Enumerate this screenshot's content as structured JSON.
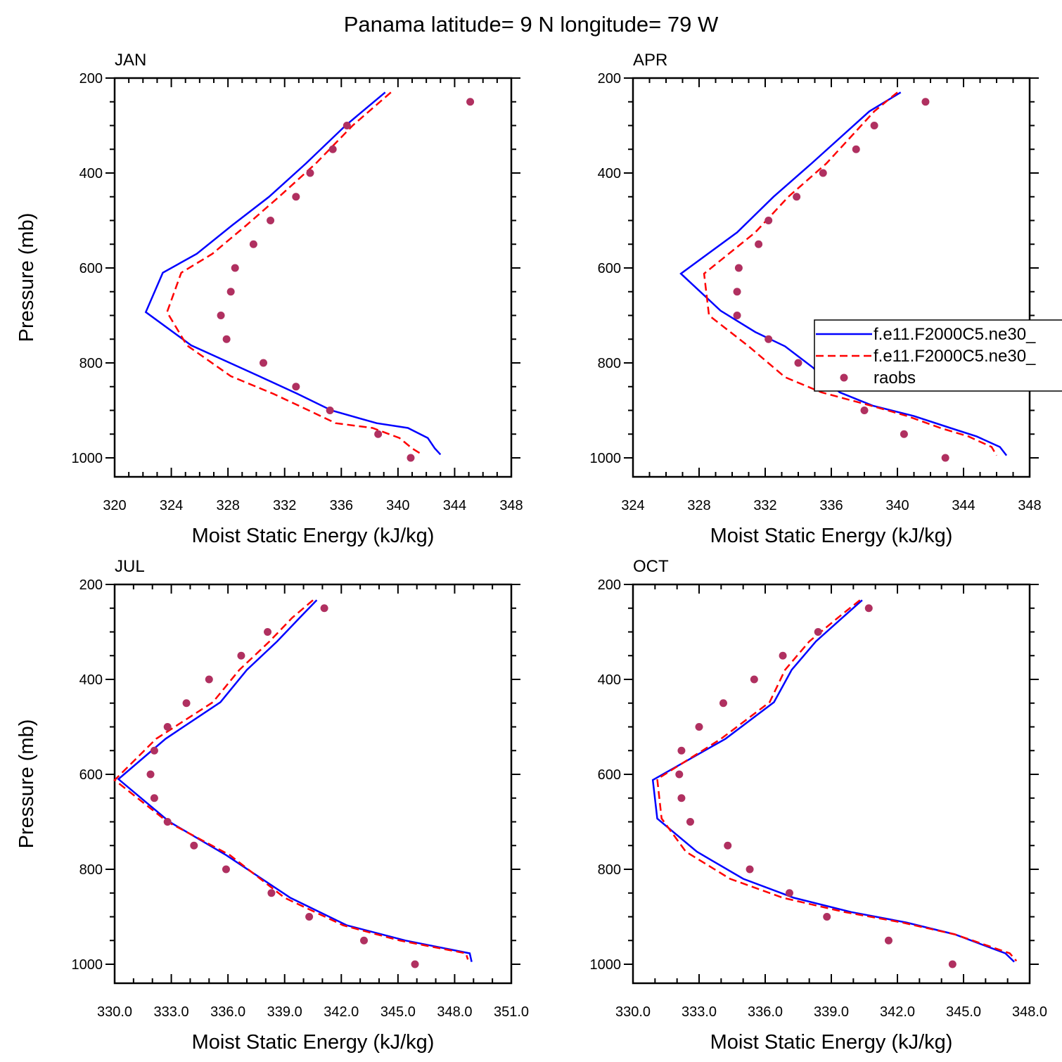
{
  "title": "Panama  latitude= 9 N longitude= 79 W",
  "legend": {
    "position": "right of APR panel (clipped at figure edge)",
    "entries": [
      {
        "label": "f.e11.F2000C5.ne30_",
        "style": "solid",
        "color": "#0000ff"
      },
      {
        "label": "f.e11.F2000C5.ne30_",
        "style": "dashed",
        "color": "#ff0000"
      },
      {
        "label": "raobs",
        "style": "marker",
        "color": "#b03060"
      }
    ]
  },
  "colors": {
    "model_solid": "#0000ff",
    "model_dashed": "#ff0000",
    "raobs": "#b03060"
  },
  "chart_data": [
    {
      "type": "line",
      "panel_label": "JAN",
      "xlabel": "Moist Static Energy (kJ/kg)",
      "ylabel": "Pressure (mb)",
      "xlim": [
        320,
        348
      ],
      "xticks": [
        320,
        324,
        328,
        332,
        336,
        340,
        344,
        348
      ],
      "xtick_labels": [
        "320",
        "324",
        "328",
        "332",
        "336",
        "340",
        "344",
        "348"
      ],
      "x_minor": 1,
      "ylim": [
        200,
        1040
      ],
      "y_inverted": true,
      "yticks": [
        200,
        400,
        600,
        800,
        1000
      ],
      "ytick_labels": [
        "200",
        "400",
        "600",
        "800",
        "1000"
      ],
      "series": [
        {
          "style": "solid",
          "color": "#0000ff",
          "x": [
            339.1,
            336.3,
            333.5,
            330.9,
            328.3,
            325.8,
            323.4,
            322.2,
            325.4,
            330.2,
            332.9,
            335.3,
            338.5,
            340.7,
            342.1,
            342.6,
            343.0
          ],
          "y": [
            230,
            300,
            380,
            450,
            510,
            570,
            610,
            693,
            763,
            828,
            865,
            900,
            927,
            937,
            958,
            980,
            993
          ]
        },
        {
          "style": "dashed",
          "color": "#ff0000",
          "x": [
            339.5,
            336.8,
            334.2,
            331.6,
            329.3,
            326.9,
            324.7,
            323.7,
            325.1,
            328.2,
            331.2,
            333.7,
            335.6,
            338.2,
            340.1,
            341.0,
            341.7
          ],
          "y": [
            230,
            300,
            380,
            450,
            510,
            570,
            610,
            693,
            763,
            828,
            865,
            900,
            927,
            937,
            958,
            980,
            993
          ]
        },
        {
          "style": "marker",
          "color": "#b03060",
          "x": [
            345.1,
            336.4,
            335.4,
            333.8,
            332.8,
            331.0,
            329.8,
            328.5,
            328.2,
            327.5,
            327.9,
            330.5,
            332.8,
            335.2,
            338.6,
            340.9
          ],
          "y": [
            250,
            300,
            350,
            400,
            450,
            500,
            550,
            600,
            650,
            700,
            750,
            800,
            850,
            900,
            950,
            1000
          ]
        }
      ]
    },
    {
      "type": "line",
      "panel_label": "APR",
      "xlabel": "Moist Static Energy (kJ/kg)",
      "ylabel": "",
      "xlim": [
        324,
        348
      ],
      "xticks": [
        324,
        328,
        332,
        336,
        340,
        344,
        348
      ],
      "xtick_labels": [
        "324",
        "328",
        "332",
        "336",
        "340",
        "344",
        "348"
      ],
      "x_minor": 1,
      "ylim": [
        200,
        1040
      ],
      "y_inverted": true,
      "yticks": [
        200,
        400,
        600,
        800,
        1000
      ],
      "ytick_labels": [
        "200",
        "400",
        "600",
        "800",
        "1000"
      ],
      "series": [
        {
          "style": "solid",
          "color": "#0000ff",
          "x": [
            340.2,
            338.3,
            334.8,
            332.5,
            330.3,
            326.9,
            329.3,
            331.4,
            333.2,
            334.9,
            336.5,
            338.5,
            341.0,
            343.2,
            344.8,
            346.2,
            346.6
          ],
          "y": [
            230,
            270,
            380,
            450,
            525,
            612,
            690,
            735,
            765,
            810,
            862,
            890,
            912,
            937,
            955,
            977,
            995
          ]
        },
        {
          "style": "dashed",
          "color": "#ff0000",
          "x": [
            340.0,
            338.6,
            335.7,
            333.4,
            331.4,
            328.3,
            328.6,
            331.0,
            333.2,
            335.4,
            338.4,
            340.6,
            342.6,
            344.3,
            345.7,
            346.0
          ],
          "y": [
            230,
            270,
            380,
            450,
            525,
            612,
            700,
            765,
            830,
            862,
            890,
            912,
            937,
            955,
            977,
            995
          ]
        },
        {
          "style": "marker",
          "color": "#b03060",
          "x": [
            341.7,
            338.6,
            337.5,
            335.5,
            333.9,
            332.2,
            331.6,
            330.4,
            330.3,
            330.3,
            332.2,
            334.0,
            335.5,
            338.0,
            340.4,
            342.9
          ],
          "y": [
            250,
            300,
            350,
            400,
            450,
            500,
            550,
            600,
            650,
            700,
            750,
            800,
            850,
            900,
            950,
            1000
          ]
        }
      ]
    },
    {
      "type": "line",
      "panel_label": "JUL",
      "xlabel": "Moist Static Energy (kJ/kg)",
      "ylabel": "Pressure (mb)",
      "xlim": [
        330,
        351
      ],
      "xticks": [
        330,
        333,
        336,
        339,
        342,
        345,
        348,
        351
      ],
      "xtick_labels": [
        "330.0",
        "333.0",
        "336.0",
        "339.0",
        "342.0",
        "345.0",
        "348.0",
        "351.0"
      ],
      "x_minor": 1,
      "ylim": [
        200,
        1040
      ],
      "y_inverted": true,
      "yticks": [
        200,
        400,
        600,
        800,
        1000
      ],
      "ytick_labels": [
        "200",
        "400",
        "600",
        "800",
        "1000"
      ],
      "series": [
        {
          "style": "solid",
          "color": "#0000ff",
          "x": [
            340.7,
            339.8,
            338.6,
            337.0,
            335.6,
            332.7,
            330.2,
            332.9,
            335.9,
            339.3,
            342.3,
            345.4,
            348.8,
            348.9
          ],
          "y": [
            233,
            270,
            320,
            380,
            448,
            525,
            610,
            700,
            770,
            860,
            918,
            950,
            977,
            995
          ]
        },
        {
          "style": "dashed",
          "color": "#ff0000",
          "x": [
            340.5,
            339.4,
            338.2,
            336.6,
            335.2,
            332.2,
            330.0,
            332.8,
            336.1,
            339.0,
            342.1,
            345.1,
            348.6,
            348.7
          ],
          "y": [
            233,
            270,
            320,
            380,
            448,
            525,
            612,
            700,
            770,
            860,
            918,
            950,
            977,
            990
          ]
        },
        {
          "style": "marker",
          "color": "#b03060",
          "x": [
            341.1,
            338.1,
            336.7,
            335.0,
            333.8,
            332.8,
            332.1,
            331.9,
            332.1,
            332.8,
            334.2,
            335.9,
            338.3,
            340.3,
            343.2,
            345.9
          ],
          "y": [
            250,
            300,
            350,
            400,
            450,
            500,
            550,
            600,
            650,
            700,
            750,
            800,
            850,
            900,
            950,
            1000
          ]
        }
      ]
    },
    {
      "type": "line",
      "panel_label": "OCT",
      "xlabel": "Moist Static Energy (kJ/kg)",
      "ylabel": "",
      "xlim": [
        330,
        348
      ],
      "xticks": [
        330,
        333,
        336,
        339,
        342,
        345,
        348
      ],
      "xtick_labels": [
        "330.0",
        "333.0",
        "336.0",
        "339.0",
        "342.0",
        "345.0",
        "348.0"
      ],
      "x_minor": 1,
      "ylim": [
        200,
        1040
      ],
      "y_inverted": true,
      "yticks": [
        200,
        400,
        600,
        800,
        1000
      ],
      "ytick_labels": [
        "200",
        "400",
        "600",
        "800",
        "1000"
      ],
      "series": [
        {
          "style": "solid",
          "color": "#0000ff",
          "x": [
            340.4,
            339.5,
            338.3,
            337.2,
            336.4,
            334.2,
            330.9,
            331.1,
            332.9,
            335.0,
            337.3,
            339.9,
            342.4,
            344.6,
            346.9,
            347.3
          ],
          "y": [
            233,
            270,
            320,
            380,
            448,
            525,
            612,
            693,
            763,
            820,
            860,
            890,
            912,
            937,
            977,
            995
          ]
        },
        {
          "style": "dashed",
          "color": "#ff0000",
          "x": [
            340.3,
            339.3,
            338.0,
            336.9,
            336.2,
            334.0,
            331.1,
            331.3,
            332.4,
            334.4,
            336.8,
            339.6,
            342.2,
            344.6,
            347.1,
            347.4
          ],
          "y": [
            233,
            270,
            320,
            380,
            448,
            525,
            610,
            693,
            763,
            820,
            860,
            890,
            912,
            937,
            977,
            993
          ]
        },
        {
          "style": "marker",
          "color": "#b03060",
          "x": [
            340.7,
            338.4,
            336.8,
            335.5,
            334.1,
            333.0,
            332.2,
            332.1,
            332.2,
            332.6,
            334.3,
            335.3,
            337.1,
            338.8,
            341.6,
            344.5
          ],
          "y": [
            250,
            300,
            350,
            400,
            450,
            500,
            550,
            600,
            650,
            700,
            750,
            800,
            850,
            900,
            950,
            1000
          ]
        }
      ]
    }
  ]
}
